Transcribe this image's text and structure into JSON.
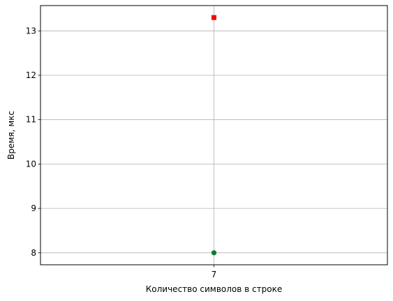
{
  "chart_data": {
    "type": "scatter",
    "xlabel": "Количество символов в строке",
    "ylabel": "Время, мкс",
    "x_ticks": [
      7
    ],
    "x_tick_labels": [
      "7"
    ],
    "y_ticks": [
      8,
      9,
      10,
      11,
      12,
      13
    ],
    "y_tick_labels": [
      "8",
      "9",
      "10",
      "11",
      "12",
      "13"
    ],
    "xlim": [
      6.9,
      7.1
    ],
    "ylim": [
      7.73,
      13.57
    ],
    "grid": true,
    "series": [
      {
        "marker": "square",
        "color": "#ff0000",
        "points": [
          {
            "x": 7,
            "y": 13.3
          }
        ]
      },
      {
        "marker": "circle",
        "color": "#1f77b4",
        "points": [
          {
            "x": 7,
            "y": 8.0
          }
        ]
      },
      {
        "marker": "circle",
        "color": "#008000",
        "points": [
          {
            "x": 7,
            "y": 8.0
          }
        ]
      }
    ]
  }
}
